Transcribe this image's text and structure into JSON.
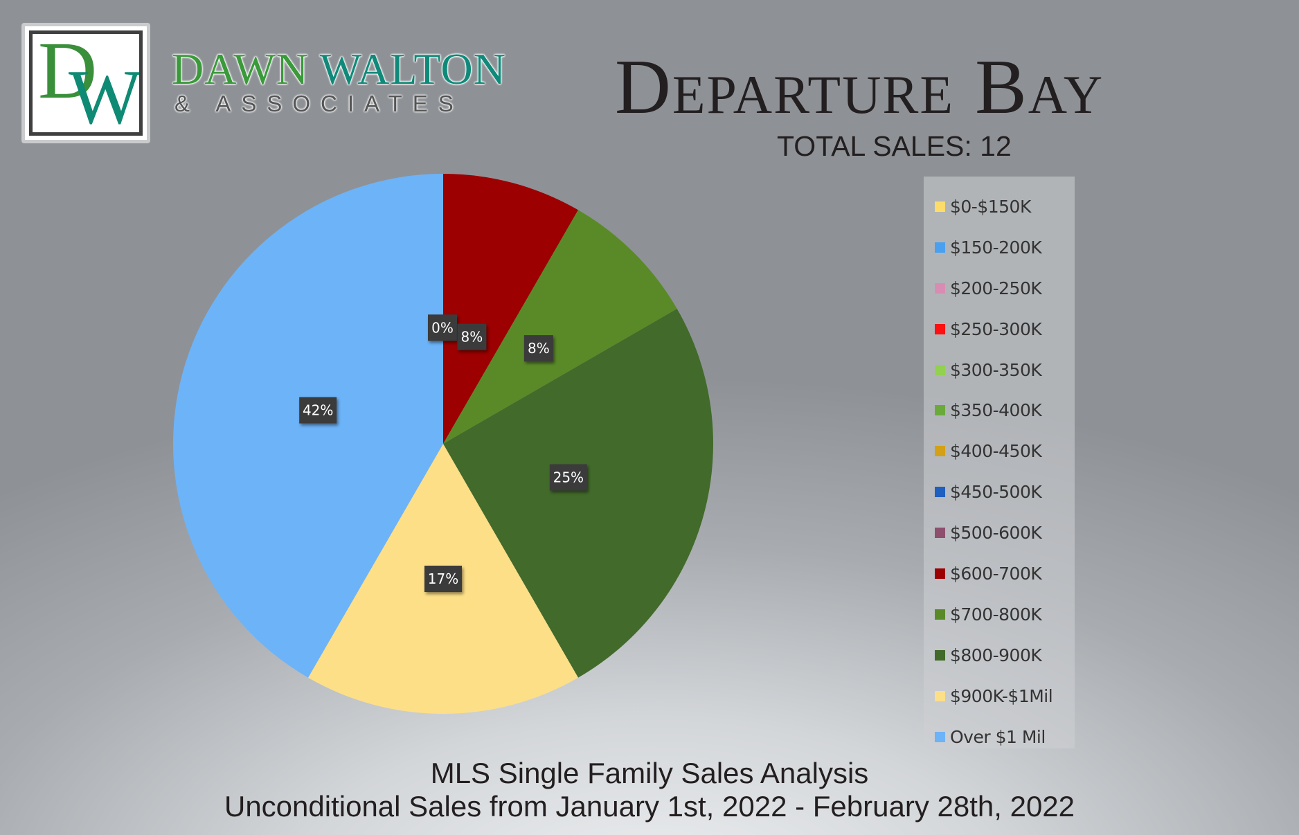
{
  "brand": {
    "logo_mark_d": "D",
    "logo_mark_w": "W",
    "name_part1": "DAWN",
    "name_part2": "WALTON",
    "tagline": "& ASSOCIATES"
  },
  "header": {
    "title": "Departure Bay",
    "total_sales": "TOTAL SALES: 12"
  },
  "footer": {
    "line1": "MLS Single Family Sales Analysis",
    "line2": "Unconditional Sales from January 1st, 2022 - February 28th, 2022"
  },
  "chart_data": {
    "type": "pie",
    "title": "",
    "categories": [
      "$0-$150K",
      "$150-200K",
      "$200-250K",
      "$250-300K",
      "$300-350K",
      "$350-400K",
      "$400-450K",
      "$450-500K",
      "$500-600K",
      "$600-700K",
      "$700-800K",
      "$800-900K",
      "$900K-$1Mil",
      "Over $1 Mil"
    ],
    "values": [
      0,
      0,
      0,
      0,
      0,
      0,
      0,
      0,
      0,
      1,
      1,
      3,
      2,
      5
    ],
    "data_labels": [
      "0%",
      "",
      "",
      "",
      "",
      "",
      "",
      "",
      "",
      "8%",
      "8%",
      "25%",
      "17%",
      "42%"
    ],
    "colors": [
      "#fddc6a",
      "#4aa0f0",
      "#d98cb3",
      "#ff1010",
      "#92d050",
      "#6aaa3a",
      "#d4a017",
      "#1f5fbf",
      "#8e4f6f",
      "#9c0000",
      "#5a8a28",
      "#426a2a",
      "#fddf88",
      "#6db3f8"
    ],
    "legend_position": "right"
  }
}
